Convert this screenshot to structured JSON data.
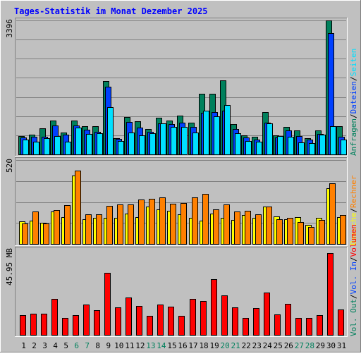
{
  "title": "Tages-Statistik im Monat Dezember 2025",
  "colors": {
    "background": "#C0C0C0",
    "title": "#0000FF",
    "hits": "#00805C",
    "files": "#0040FF",
    "pages": "#00E0FF",
    "visits": "#FFFF00",
    "sites": "#FF8000",
    "volume": "#FF0000",
    "weekend_label": "#00805C",
    "weekday_label": "#000000"
  },
  "legend": {
    "top": [
      {
        "text": "Anfragen",
        "color": "#00805C"
      },
      {
        "text": "Dateien",
        "color": "#0040FF"
      },
      {
        "text": "Seiten",
        "color": "#00E0FF"
      }
    ],
    "middle": [
      {
        "text": "Besuche",
        "color": "#FFFF00"
      },
      {
        "text": "Rechner",
        "color": "#FF8000"
      }
    ],
    "bottom": [
      {
        "text": "Vol. Out",
        "color": "#00805C"
      },
      {
        "text": "Vol. In",
        "color": "#0040FF"
      },
      {
        "text": "Volumen",
        "color": "#FF0000"
      }
    ],
    "separator": "/"
  },
  "chart_data": {
    "type": "bar",
    "title": "Tages-Statistik im Monat Dezember 2025",
    "categories": [
      "1",
      "2",
      "3",
      "4",
      "5",
      "6",
      "7",
      "8",
      "9",
      "10",
      "11",
      "12",
      "13",
      "14",
      "15",
      "16",
      "17",
      "18",
      "19",
      "20",
      "21",
      "22",
      "23",
      "24",
      "25",
      "26",
      "27",
      "28",
      "29",
      "30",
      "31"
    ],
    "weekend_days": [
      "6",
      "7",
      "13",
      "14",
      "20",
      "21",
      "27",
      "28"
    ],
    "panels": [
      {
        "name": "top",
        "ymax_label": "3396",
        "ylim": [
          0,
          3396
        ],
        "grid": true,
        "series": [
          {
            "name": "Anfragen",
            "values": [
              460,
              500,
              660,
              850,
              560,
              860,
              720,
              720,
              1850,
              410,
              950,
              840,
              650,
              930,
              860,
              980,
              810,
              1530,
              1540,
              1870,
              770,
              490,
              440,
              1080,
              490,
              700,
              600,
              420,
              600,
              3396,
              720
            ]
          },
          {
            "name": "Dateien",
            "values": [
              430,
              450,
              440,
              730,
              500,
              730,
              620,
              580,
              1720,
              390,
              830,
              680,
              570,
              780,
              770,
              800,
              700,
              1060,
              1080,
              1110,
              640,
              430,
              370,
              810,
              430,
              600,
              460,
              370,
              510,
              3080,
              450
            ]
          },
          {
            "name": "Seiten",
            "values": [
              380,
              330,
              420,
              460,
              330,
              680,
              510,
              530,
              1200,
              340,
              550,
              480,
              540,
              780,
              690,
              690,
              560,
              1100,
              960,
              1250,
              540,
              340,
              330,
              790,
              460,
              440,
              310,
              280,
              500,
              720,
              380
            ]
          }
        ]
      },
      {
        "name": "middle",
        "ymax_label": "520",
        "ylim": [
          0,
          520
        ],
        "grid": true,
        "series": [
          {
            "name": "Besuche",
            "values": [
              140,
              145,
              130,
              200,
              165,
              425,
              155,
              160,
              160,
              160,
              190,
              165,
              230,
              215,
              205,
              185,
              160,
              145,
              190,
              160,
              150,
              180,
              160,
              230,
              170,
              155,
              165,
              120,
              160,
              345,
              165
            ]
          },
          {
            "name": "Rechner",
            "values": [
              125,
              200,
              125,
              210,
              240,
              455,
              185,
              185,
              235,
              245,
              245,
              275,
              280,
              290,
              250,
              255,
              290,
              310,
              215,
              245,
              200,
              205,
              185,
              230,
              155,
              160,
              135,
              105,
              150,
              375,
              180
            ]
          }
        ]
      },
      {
        "name": "bottom",
        "ymax_label": "45.95 MB",
        "ylim": [
          0,
          45.95
        ],
        "grid": false,
        "series": [
          {
            "name": "Vol. Out",
            "values": [
              0,
              0,
              0,
              0,
              0,
              0,
              0,
              0,
              0,
              0,
              0,
              0,
              0,
              0,
              0,
              0,
              0,
              0,
              0,
              0,
              0,
              0,
              0,
              0,
              0,
              0,
              0,
              0,
              0,
              0,
              0
            ]
          },
          {
            "name": "Vol. In",
            "values": [
              0,
              0,
              0,
              0,
              0,
              0,
              0,
              0,
              0,
              0,
              0,
              0,
              0,
              0,
              0,
              0,
              0,
              0,
              0,
              0,
              0,
              0,
              0,
              0,
              0,
              0,
              0,
              0,
              0,
              0,
              0
            ]
          },
          {
            "name": "Volumen",
            "values": [
              10.5,
              11.5,
              11.5,
              19.5,
              9,
              10.8,
              16.5,
              13.2,
              33.5,
              15,
              20.2,
              15.7,
              10.2,
              16.3,
              15.3,
              10.2,
              19.2,
              18.3,
              30,
              21.3,
              15,
              9.3,
              14.3,
              22.8,
              11,
              16.6,
              9.2,
              9.3,
              10.5,
              44,
              13.6
            ]
          }
        ]
      }
    ]
  }
}
